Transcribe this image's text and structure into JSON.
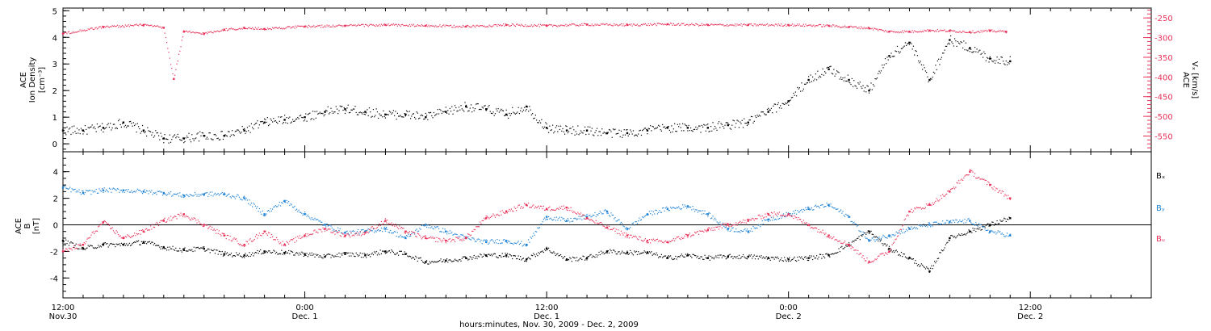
{
  "figure": {
    "xlabel": "hours:minutes, Nov. 30, 2009 - Dec. 2, 2009",
    "time_ticks": [
      {
        "hours": 0,
        "line1": "12:00",
        "line2": "Nov.30"
      },
      {
        "hours": 12,
        "line1": "0:00",
        "line2": "Dec. 1"
      },
      {
        "hours": 24,
        "line1": "12:00",
        "line2": "Dec. 1"
      },
      {
        "hours": 36,
        "line1": "0:00",
        "line2": "Dec. 2"
      },
      {
        "hours": 48,
        "line1": "12:00",
        "line2": "Dec. 2"
      }
    ],
    "time_range_hours": [
      0,
      54
    ],
    "minor_tick_hours": 1,
    "colors": {
      "black": "#000000",
      "pink": "#e8325a",
      "blue": "#1f83d6"
    }
  },
  "chart_data": [
    {
      "type": "scatter",
      "panel": "top",
      "left_axis_label": [
        "ACE",
        "Ion Density",
        "[cm⁻³]"
      ],
      "right_axis_label": [
        "ACE",
        "Vₓ [km/s]"
      ],
      "left_ylim": [
        -0.3,
        5.1
      ],
      "left_ticks": [
        "0",
        "1",
        "2",
        "3",
        "4",
        "5"
      ],
      "right_ylim": [
        -590,
        -225
      ],
      "right_ticks": [
        "-250",
        "-300",
        "-350",
        "-400",
        "-450",
        "-500",
        "-550"
      ],
      "x_units": "hours since 12:00 Nov. 30, 2009",
      "series": [
        {
          "axis": "left",
          "color": "#000000",
          "x": [
            0,
            1,
            2,
            3,
            4,
            5,
            6,
            7,
            8,
            9,
            10,
            11,
            12,
            13,
            14,
            15,
            16,
            17,
            18,
            19,
            20,
            21,
            22,
            23,
            24,
            25,
            26,
            27,
            28,
            29,
            30,
            31,
            32,
            33,
            34,
            35,
            36,
            37,
            38,
            39,
            40,
            41,
            42,
            43,
            44,
            45,
            46,
            47
          ],
          "values": [
            0.5,
            0.5,
            0.6,
            0.8,
            0.5,
            0.2,
            0.2,
            0.3,
            0.3,
            0.5,
            0.8,
            0.9,
            1.0,
            1.2,
            1.3,
            1.2,
            1.1,
            1.1,
            1.0,
            1.2,
            1.4,
            1.3,
            1.1,
            1.4,
            0.6,
            0.5,
            0.5,
            0.4,
            0.4,
            0.5,
            0.6,
            0.6,
            0.6,
            0.7,
            0.8,
            1.2,
            1.6,
            2.4,
            2.8,
            2.4,
            2.0,
            3.3,
            3.8,
            2.4,
            3.9,
            3.6,
            3.2,
            3.1
          ]
        },
        {
          "axis": "right",
          "color": "#e8325a",
          "x": [
            0,
            2,
            4,
            5,
            5.5,
            6,
            7,
            8,
            9,
            10,
            12,
            14,
            16,
            18,
            20,
            22,
            24,
            26,
            28,
            30,
            32,
            34,
            36,
            38,
            39,
            40,
            41,
            42,
            43,
            44,
            45,
            46,
            46.8
          ],
          "values": [
            -290,
            -273,
            -268,
            -275,
            -405,
            -285,
            -290,
            -280,
            -276,
            -278,
            -272,
            -270,
            -268,
            -270,
            -272,
            -268,
            -270,
            -267,
            -268,
            -266,
            -268,
            -268,
            -268,
            -270,
            -273,
            -276,
            -285,
            -285,
            -282,
            -283,
            -286,
            -283,
            -285
          ]
        }
      ]
    },
    {
      "type": "scatter",
      "panel": "bottom",
      "ylabel": [
        "ACE",
        "B",
        "[nT]"
      ],
      "ylim": [
        -5.5,
        5.5
      ],
      "yticks": [
        "-4",
        "-2",
        "0",
        "2",
        "4"
      ],
      "zero_line": true,
      "legend": [
        "Bₓ",
        "Bᵧ",
        "Bᵤ"
      ],
      "legend_position": "right",
      "x_units": "hours since 12:00 Nov. 30, 2009",
      "series": [
        {
          "name": "Bₓ",
          "color": "#000000",
          "x": [
            0,
            1,
            2,
            3,
            4,
            5,
            6,
            7,
            8,
            9,
            10,
            11,
            12,
            13,
            14,
            15,
            16,
            17,
            18,
            19,
            20,
            21,
            22,
            23,
            24,
            25,
            26,
            27,
            28,
            29,
            30,
            31,
            32,
            33,
            34,
            35,
            36,
            37,
            38,
            39,
            40,
            41,
            42,
            43,
            44,
            45,
            46,
            47
          ],
          "values": [
            -1.2,
            -1.8,
            -1.5,
            -1.5,
            -1.3,
            -1.7,
            -1.9,
            -1.8,
            -2.2,
            -2.3,
            -2.0,
            -2.1,
            -2.2,
            -2.4,
            -2.2,
            -2.3,
            -2.0,
            -2.2,
            -2.8,
            -2.7,
            -2.5,
            -2.3,
            -2.3,
            -2.6,
            -1.8,
            -2.6,
            -2.5,
            -2.0,
            -2.1,
            -2.1,
            -2.5,
            -2.3,
            -2.5,
            -2.4,
            -2.4,
            -2.5,
            -2.6,
            -2.5,
            -2.3,
            -1.5,
            -0.5,
            -1.8,
            -2.5,
            -3.5,
            -1.0,
            -0.5,
            0.0,
            0.5
          ]
        },
        {
          "name": "Bᵧ",
          "color": "#1f83d6",
          "x": [
            0,
            1,
            2,
            3,
            4,
            5,
            6,
            7,
            8,
            9,
            10,
            11,
            12,
            13,
            14,
            15,
            16,
            17,
            18,
            19,
            20,
            21,
            22,
            23,
            24,
            25,
            26,
            27,
            28,
            29,
            30,
            31,
            32,
            33,
            34,
            35,
            36,
            37,
            38,
            39,
            40,
            41,
            42,
            43,
            44,
            45,
            46,
            47
          ],
          "values": [
            2.8,
            2.4,
            2.6,
            2.6,
            2.5,
            2.4,
            2.2,
            2.3,
            2.3,
            2.0,
            0.8,
            1.8,
            0.8,
            0.0,
            -0.6,
            -0.5,
            -0.3,
            -1.0,
            0.0,
            -0.5,
            -1.0,
            -1.3,
            -1.2,
            -1.5,
            0.6,
            0.3,
            0.6,
            1.0,
            -0.3,
            0.8,
            1.2,
            1.4,
            0.8,
            -0.3,
            -0.5,
            0.4,
            0.8,
            1.2,
            1.5,
            0.6,
            -1.2,
            -0.8,
            -0.3,
            0.0,
            0.2,
            0.3,
            -0.5,
            -0.8
          ]
        },
        {
          "name": "Bᵤ",
          "color": "#e8325a",
          "x": [
            0,
            1,
            2,
            3,
            4,
            5,
            6,
            7,
            8,
            9,
            10,
            11,
            12,
            13,
            14,
            15,
            16,
            17,
            18,
            19,
            20,
            21,
            22,
            23,
            24,
            25,
            26,
            27,
            28,
            29,
            30,
            31,
            32,
            33,
            34,
            35,
            36,
            37,
            38,
            39,
            40,
            41,
            42,
            43,
            44,
            45,
            46,
            47
          ],
          "values": [
            -2.0,
            -1.5,
            0.2,
            -1.0,
            -0.5,
            0.3,
            0.8,
            0.0,
            -0.8,
            -1.5,
            -0.5,
            -1.5,
            -0.8,
            -0.3,
            -0.8,
            -0.6,
            0.3,
            -0.5,
            -1.0,
            -1.2,
            -1.0,
            0.5,
            1.0,
            1.5,
            1.2,
            1.3,
            0.5,
            -0.2,
            -0.8,
            -1.2,
            -1.3,
            -0.8,
            -0.4,
            0.0,
            0.3,
            0.8,
            0.8,
            0.0,
            -0.8,
            -1.5,
            -2.8,
            -2.0,
            1.0,
            1.5,
            2.5,
            4.0,
            3.0,
            2.0
          ]
        }
      ]
    }
  ]
}
